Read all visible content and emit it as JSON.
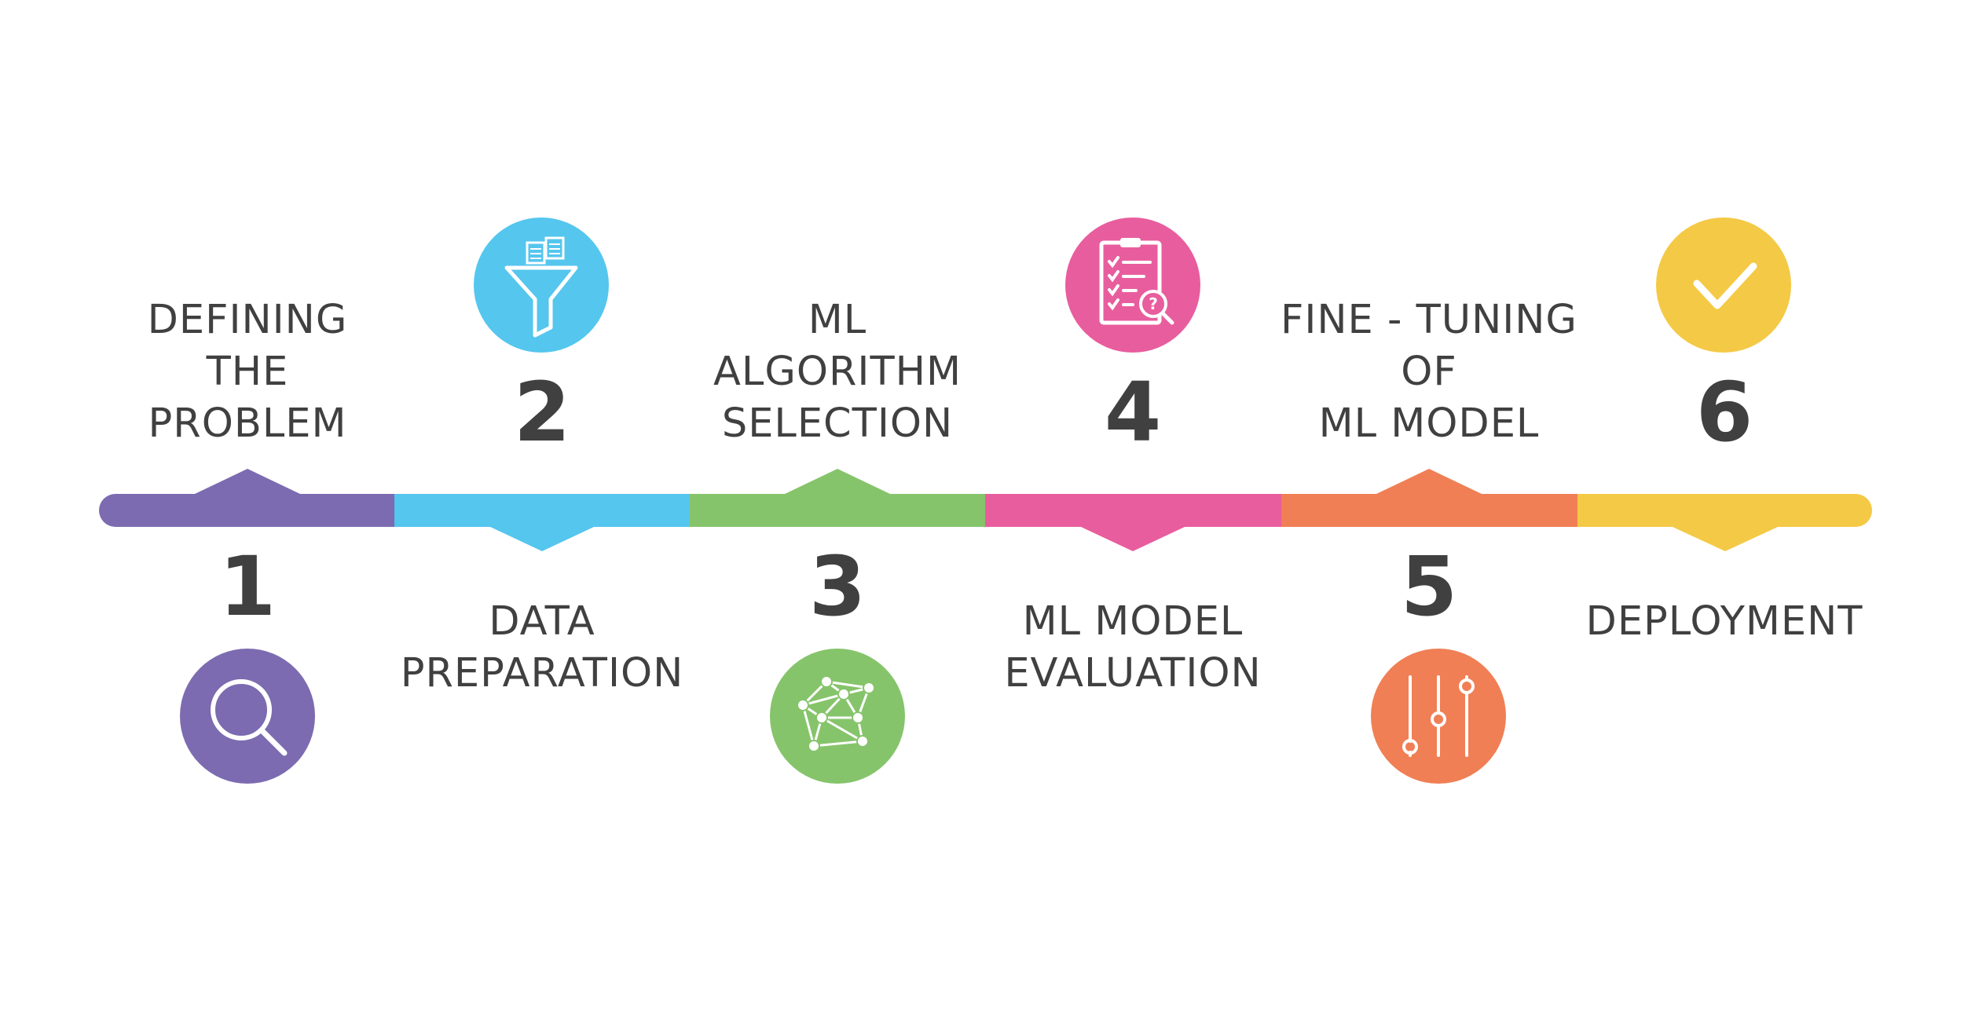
{
  "steps": [
    {
      "number": "1",
      "label": "DEFINING\nTHE\nPROBLEM",
      "color": "#7c6bb0",
      "icon": "magnifier-icon"
    },
    {
      "number": "2",
      "label": "DATA\nPREPARATION",
      "color": "#55c6ee",
      "icon": "funnel-documents-icon"
    },
    {
      "number": "3",
      "label": "ML\nALGORITHM\nSELECTION",
      "color": "#86c46b",
      "icon": "network-graph-icon"
    },
    {
      "number": "4",
      "label": "ML MODEL\nEVALUATION",
      "color": "#e85d9d",
      "icon": "clipboard-checklist-icon"
    },
    {
      "number": "5",
      "label": "FINE - TUNING\nOF\nML MODEL",
      "color": "#f07f55",
      "icon": "sliders-icon"
    },
    {
      "number": "6",
      "label": "DEPLOYMENT",
      "color": "#f4c945",
      "icon": "checkmark-icon"
    }
  ]
}
